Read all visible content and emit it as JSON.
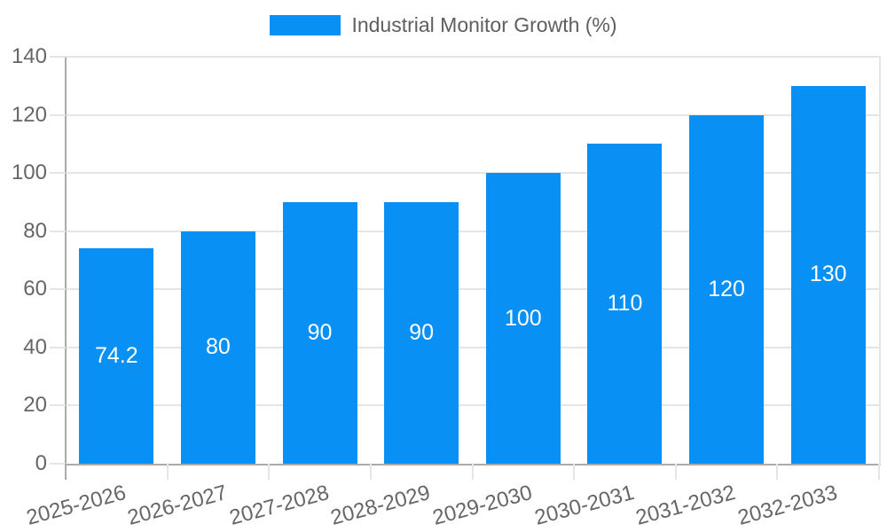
{
  "legend": {
    "label": "Industrial Monitor Growth (%)"
  },
  "chart_data": {
    "type": "bar",
    "title": "",
    "series_name": "Industrial Monitor Growth (%)",
    "categories": [
      "2025-2026",
      "2026-2027",
      "2027-2028",
      "2028-2029",
      "2029-2030",
      "2030-2031",
      "2031-2032",
      "2032-2033"
    ],
    "values": [
      74.2,
      80,
      90,
      90,
      100,
      110,
      120,
      130
    ],
    "bar_labels": [
      "74.2",
      "80",
      "90",
      "90",
      "100",
      "110",
      "120",
      "130"
    ],
    "xlabel": "",
    "ylabel": "",
    "ylim": [
      0,
      140
    ],
    "yticks": [
      0,
      20,
      40,
      60,
      80,
      100,
      120,
      140
    ],
    "grid": true,
    "legend_position": "top",
    "colors": {
      "bar": "#0890F5",
      "grid": "#e5e5e5",
      "axis": "#aaaaaa",
      "tick_text": "#666666",
      "legend_text": "#5f5f5f",
      "bar_label_text": "#ffffff",
      "background": "#ffffff"
    }
  }
}
